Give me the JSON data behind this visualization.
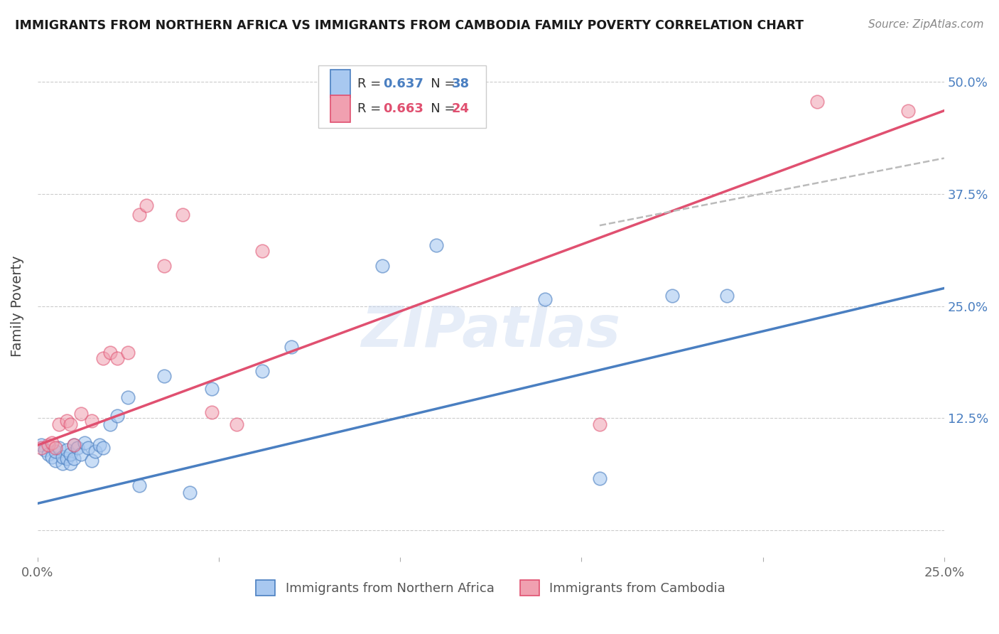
{
  "title": "IMMIGRANTS FROM NORTHERN AFRICA VS IMMIGRANTS FROM CAMBODIA FAMILY POVERTY CORRELATION CHART",
  "source": "Source: ZipAtlas.com",
  "ylabel": "Family Poverty",
  "xlim": [
    0.0,
    0.25
  ],
  "ylim": [
    -0.03,
    0.53
  ],
  "yticks": [
    0.0,
    0.125,
    0.25,
    0.375,
    0.5
  ],
  "ytick_labels": [
    "",
    "12.5%",
    "25.0%",
    "37.5%",
    "50.0%"
  ],
  "xticks": [
    0.0,
    0.05,
    0.1,
    0.15,
    0.2,
    0.25
  ],
  "xtick_labels": [
    "0.0%",
    "",
    "",
    "",
    "",
    "25.0%"
  ],
  "color_blue": "#a8c8f0",
  "color_pink": "#f0a0b0",
  "color_blue_line": "#4a7fc1",
  "color_pink_line": "#e05070",
  "color_dashed": "#bbbbbb",
  "watermark": "ZIPatlas",
  "blue_scatter_x": [
    0.001,
    0.002,
    0.003,
    0.004,
    0.005,
    0.005,
    0.006,
    0.007,
    0.007,
    0.008,
    0.008,
    0.009,
    0.009,
    0.01,
    0.01,
    0.011,
    0.012,
    0.013,
    0.014,
    0.015,
    0.016,
    0.017,
    0.018,
    0.02,
    0.022,
    0.025,
    0.028,
    0.035,
    0.042,
    0.048,
    0.062,
    0.07,
    0.095,
    0.11,
    0.14,
    0.155,
    0.175,
    0.19
  ],
  "blue_scatter_y": [
    0.095,
    0.09,
    0.085,
    0.082,
    0.078,
    0.088,
    0.092,
    0.075,
    0.082,
    0.08,
    0.09,
    0.075,
    0.085,
    0.08,
    0.095,
    0.092,
    0.085,
    0.098,
    0.092,
    0.078,
    0.088,
    0.095,
    0.092,
    0.118,
    0.128,
    0.148,
    0.05,
    0.172,
    0.042,
    0.158,
    0.178,
    0.205,
    0.295,
    0.318,
    0.258,
    0.058,
    0.262,
    0.262
  ],
  "pink_scatter_x": [
    0.001,
    0.003,
    0.004,
    0.005,
    0.006,
    0.008,
    0.009,
    0.01,
    0.012,
    0.015,
    0.018,
    0.02,
    0.022,
    0.025,
    0.028,
    0.03,
    0.035,
    0.04,
    0.048,
    0.055,
    0.062,
    0.155,
    0.215,
    0.24
  ],
  "pink_scatter_y": [
    0.092,
    0.095,
    0.098,
    0.092,
    0.118,
    0.122,
    0.118,
    0.095,
    0.13,
    0.122,
    0.192,
    0.198,
    0.192,
    0.198,
    0.352,
    0.362,
    0.295,
    0.352,
    0.132,
    0.118,
    0.312,
    0.118,
    0.478,
    0.468
  ],
  "blue_line_x": [
    0.0,
    0.25
  ],
  "blue_line_y": [
    0.03,
    0.27
  ],
  "pink_line_x": [
    0.0,
    0.25
  ],
  "pink_line_y": [
    0.095,
    0.468
  ],
  "dashed_line_x": [
    0.155,
    0.25
  ],
  "dashed_line_y": [
    0.34,
    0.415
  ]
}
